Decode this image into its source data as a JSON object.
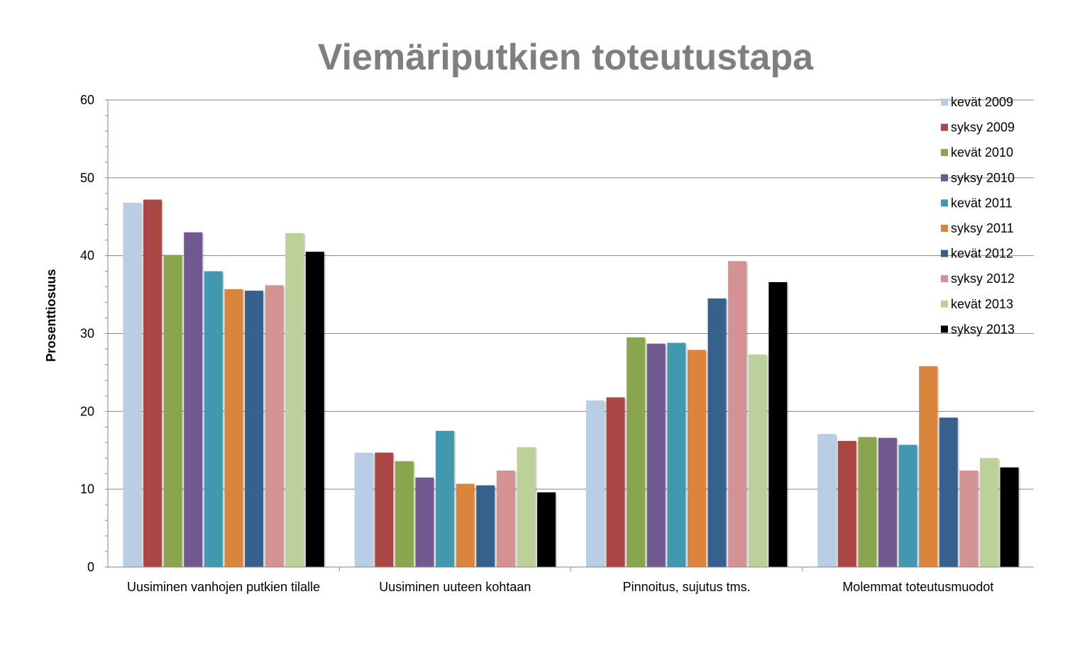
{
  "chart_data": {
    "type": "bar",
    "title": "Viemäriputkien toteutustapa",
    "xlabel": "",
    "ylabel": "Prosenttiosuus",
    "ylim": [
      0,
      60
    ],
    "yticks": [
      0,
      10,
      20,
      30,
      40,
      50,
      60
    ],
    "grid": true,
    "legend_position": "right",
    "categories": [
      "Uusiminen vanhojen putkien tilalle",
      "Uusiminen uuteen kohtaan",
      "Pinnoitus, sujutus tms.",
      "Molemmat toteutusmuodot"
    ],
    "series": [
      {
        "name": "kevät 2009",
        "color": "#b9cde5",
        "values": [
          46.8,
          14.7,
          21.4,
          17.1
        ]
      },
      {
        "name": "syksy 2009",
        "color": "#aa4643",
        "values": [
          47.2,
          14.7,
          21.8,
          16.2
        ]
      },
      {
        "name": "kevät 2010",
        "color": "#89a54e",
        "values": [
          40.1,
          13.6,
          29.5,
          16.7
        ]
      },
      {
        "name": "syksy 2010",
        "color": "#71588f",
        "values": [
          43.0,
          11.5,
          28.7,
          16.6
        ]
      },
      {
        "name": "kevät 2011",
        "color": "#4198af",
        "values": [
          38.0,
          17.5,
          28.8,
          15.7
        ]
      },
      {
        "name": "syksy 2011",
        "color": "#db843d",
        "values": [
          35.7,
          10.7,
          27.9,
          25.8
        ]
      },
      {
        "name": "kevät 2012",
        "color": "#36618c",
        "values": [
          35.5,
          10.5,
          34.5,
          19.2
        ]
      },
      {
        "name": "syksy 2012",
        "color": "#d39393",
        "values": [
          36.2,
          12.4,
          39.3,
          12.4
        ]
      },
      {
        "name": "kevät 2013",
        "color": "#bcd19a",
        "values": [
          42.9,
          15.4,
          27.3,
          14.0
        ]
      },
      {
        "name": "syksy 2013",
        "color": "#000000",
        "values": [
          40.5,
          9.6,
          36.6,
          12.8
        ]
      }
    ]
  }
}
